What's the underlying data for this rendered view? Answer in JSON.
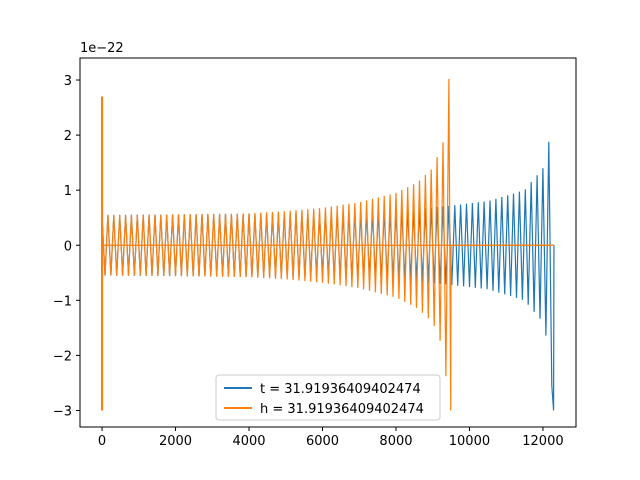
{
  "chart_data": {
    "type": "line",
    "title": "",
    "xlabel": "",
    "ylabel": "",
    "y_offset_text": "1e−22",
    "xlim": [
      -600,
      12900
    ],
    "ylim": [
      -3.3,
      3.4
    ],
    "x_ticks": [
      0,
      2000,
      4000,
      6000,
      8000,
      10000,
      12000
    ],
    "x_tick_labels": [
      "0",
      "2000",
      "4000",
      "6000",
      "8000",
      "10000",
      "12000"
    ],
    "y_ticks": [
      -3,
      -2,
      -1,
      0,
      1,
      2,
      3
    ],
    "y_tick_labels": [
      "−3",
      "−2",
      "−1",
      "0",
      "1",
      "2",
      "3"
    ],
    "grid": false,
    "legend_position": "lower center",
    "series": [
      {
        "name": "t = 31.91936409402474",
        "color": "#1f77b4",
        "envelope_x": [
          0,
          2000,
          4000,
          6000,
          8000,
          9500,
          10500,
          11500,
          12000,
          12200,
          12280,
          12300
        ],
        "envelope_y": [
          0.55,
          0.56,
          0.57,
          0.58,
          0.62,
          0.72,
          0.8,
          1.0,
          1.4,
          2.0,
          3.1,
          0.0
        ],
        "spike_x": 0,
        "spike_range": [
          -3.0,
          2.7
        ]
      },
      {
        "name": "h = 31.91936409402474",
        "color": "#ff7f0e",
        "envelope_x": [
          0,
          1000,
          2000,
          3000,
          4000,
          5000,
          6000,
          7000,
          8000,
          8600,
          9000,
          9300,
          9450,
          9500
        ],
        "envelope_y": [
          0.55,
          0.55,
          0.56,
          0.57,
          0.58,
          0.62,
          0.68,
          0.78,
          0.95,
          1.15,
          1.4,
          1.9,
          3.1,
          0.0
        ],
        "spike_x": 0,
        "spike_range": [
          -3.0,
          2.7
        ]
      }
    ]
  }
}
